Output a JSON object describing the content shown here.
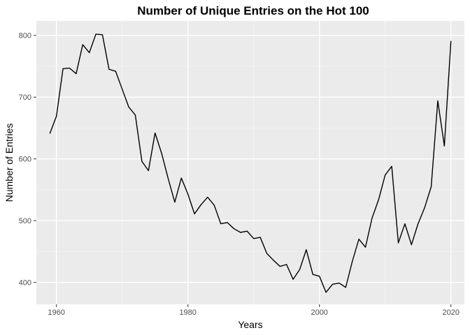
{
  "chart_data": {
    "type": "line",
    "title": "Number of Unique Entries on the Hot 100",
    "xlabel": "Years",
    "ylabel": "Number of Entries",
    "xlim": [
      1956.95,
      2022.05
    ],
    "ylim": [
      364.6,
      823.4
    ],
    "x_ticks": [
      1960,
      1980,
      2000,
      2020
    ],
    "x_tick_labels": [
      "1960",
      "1980",
      "2000",
      "2020"
    ],
    "y_ticks": [
      400,
      500,
      600,
      700,
      800
    ],
    "y_tick_labels": [
      "400",
      "500",
      "600",
      "700",
      "800"
    ],
    "grid": true,
    "legend": "none",
    "colors": {
      "panel": "#ebebeb",
      "grid_major": "#ffffff",
      "grid_minor": "#f5f5f5",
      "line": "#000000",
      "tick_text": "#4d4d4d"
    },
    "series": [
      {
        "x": [
          1959,
          1960,
          1961,
          1962,
          1963,
          1964,
          1965,
          1966,
          1967,
          1968,
          1969,
          1970,
          1971,
          1972,
          1973,
          1974,
          1975,
          1976,
          1977,
          1978,
          1979,
          1980,
          1981,
          1982,
          1983,
          1984,
          1985,
          1986,
          1987,
          1988,
          1989,
          1990,
          1991,
          1992,
          1993,
          1994,
          1995,
          1996,
          1997,
          1998,
          1999,
          2000,
          2001,
          2002,
          2003,
          2004,
          2005,
          2006,
          2007,
          2008,
          2009,
          2010,
          2011,
          2012,
          2013,
          2014,
          2015,
          2016,
          2017,
          2018,
          2019,
          2020
        ],
        "y": [
          641,
          669,
          746,
          747,
          738,
          785,
          772,
          802,
          801,
          745,
          742,
          713,
          684,
          671,
          596,
          581,
          642,
          609,
          568,
          530,
          569,
          543,
          511,
          526,
          538,
          525,
          495,
          497,
          487,
          481,
          483,
          471,
          473,
          447,
          436,
          426,
          429,
          405,
          421,
          453,
          413,
          410,
          384,
          397,
          399,
          392,
          434,
          470,
          457,
          504,
          534,
          574,
          588,
          464,
          495,
          461,
          495,
          521,
          555,
          694,
          621,
          791
        ]
      }
    ]
  }
}
